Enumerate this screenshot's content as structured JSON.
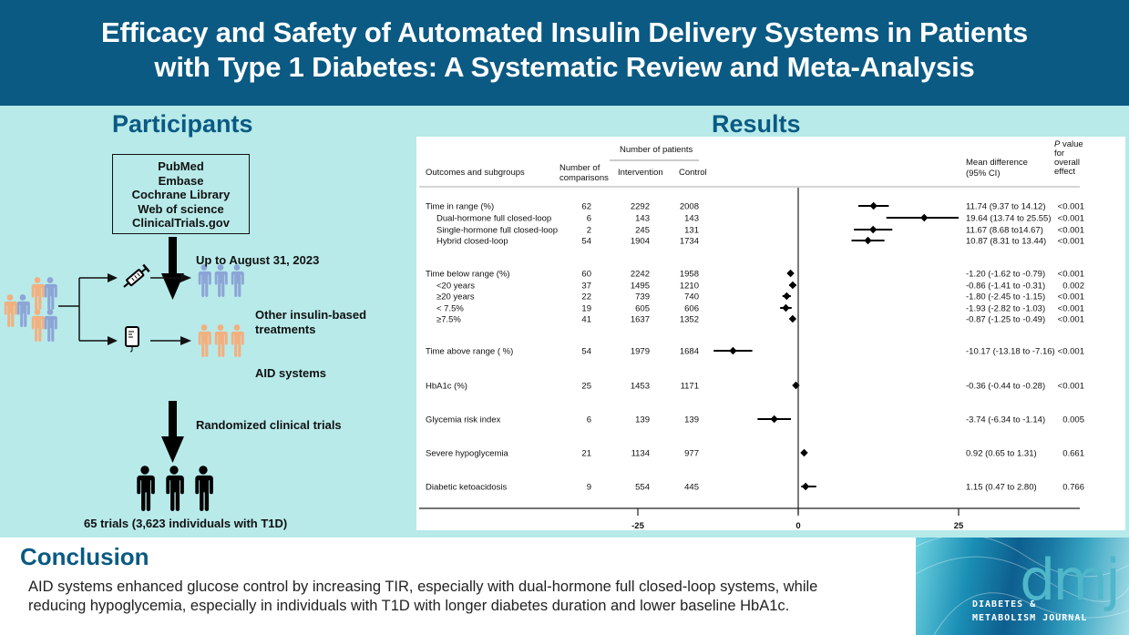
{
  "header": {
    "title_line1": "Efficacy and Safety of Automated Insulin Delivery Systems in Patients",
    "title_line2": "with Type 1 Diabetes: A Systematic Review and Meta-Analysis"
  },
  "participants": {
    "title": "Participants",
    "databases": [
      "PubMed",
      "Embase",
      "Cochrane Library",
      "Web of science",
      "ClinicalTrials.gov"
    ],
    "search_date": "Up to August 31, 2023",
    "arm_other": "Other insulin-based treatments",
    "arm_other_line1": "Other insulin-based",
    "arm_other_line2": "treatments",
    "arm_aid": "AID systems",
    "design": "Randomized clinical trials",
    "summary": "65 trials (3,623 individuals with T1D)",
    "colors": {
      "blue_person": "#8da5d6",
      "orange_person": "#f2b07f",
      "dark": "#111111"
    }
  },
  "results": {
    "title": "Results"
  },
  "chart_data": {
    "type": "forest",
    "title": "Results",
    "columns": {
      "outcome": "Outcomes and subgroups",
      "comparisons_line1": "Number of",
      "comparisons_line2": "comparisons",
      "patients_group": "Number of patients",
      "intervention": "Intervention",
      "control": "Control",
      "md_line1": "Mean difference",
      "md_line2": "(95% CI)",
      "p_line1": "P value",
      "p_line2": "for",
      "p_line3": "overall",
      "p_line4": "effect"
    },
    "xaxis": {
      "ticks": [
        -25,
        0,
        25
      ],
      "tick_labels": [
        "-25",
        "0",
        "25"
      ],
      "range": [
        -25,
        25
      ],
      "reference_line": 0
    },
    "rows": [
      {
        "label": "Time in range (%)",
        "indent": false,
        "comparisons": "62",
        "intervention": "2292",
        "control": "2008",
        "md": 11.74,
        "lo": 9.37,
        "hi": 14.12,
        "md_text": "11.74 (9.37 to 14.12)",
        "p": "<0.001"
      },
      {
        "label": "Dual-hormone full closed-loop",
        "indent": true,
        "comparisons": "6",
        "intervention": "143",
        "control": "143",
        "md": 19.64,
        "lo": 13.74,
        "hi": 25.55,
        "md_text": "19.64 (13.74 to 25.55)",
        "p": "<0.001"
      },
      {
        "label": "Single-hormone full closed-loop",
        "indent": true,
        "comparisons": "2",
        "intervention": "245",
        "control": "131",
        "md": 11.67,
        "lo": 8.68,
        "hi": 14.67,
        "md_text": "11.67 (8.68 to14.67)",
        "p": "<0.001"
      },
      {
        "label": "Hybrid closed-loop",
        "indent": true,
        "comparisons": "54",
        "intervention": "1904",
        "control": "1734",
        "md": 10.87,
        "lo": 8.31,
        "hi": 13.44,
        "md_text": "10.87 (8.31 to 13.44)",
        "p": "<0.001"
      },
      {
        "label": "Time below range (%)",
        "indent": false,
        "comparisons": "60",
        "intervention": "2242",
        "control": "1958",
        "md": -1.2,
        "lo": -1.62,
        "hi": -0.79,
        "md_text": "-1.20 (-1.62 to -0.79)",
        "p": "<0.001"
      },
      {
        "label": "<20 years",
        "indent": true,
        "comparisons": "37",
        "intervention": "1495",
        "control": "1210",
        "md": -0.86,
        "lo": -1.41,
        "hi": -0.31,
        "md_text": "-0.86 (-1.41 to -0.31)",
        "p": "0.002"
      },
      {
        "label": "≥20 years",
        "indent": true,
        "comparisons": "22",
        "intervention": "739",
        "control": "740",
        "md": -1.8,
        "lo": -2.45,
        "hi": -1.15,
        "md_text": "-1.80 (-2.45 to -1.15)",
        "p": "<0.001"
      },
      {
        "label": "< 7.5%",
        "indent": true,
        "comparisons": "19",
        "intervention": "605",
        "control": "606",
        "md": -1.93,
        "lo": -2.82,
        "hi": -1.03,
        "md_text": "-1.93 (-2.82 to -1.03)",
        "p": "<0.001"
      },
      {
        "label": "≥7.5%",
        "indent": true,
        "comparisons": "41",
        "intervention": "1637",
        "control": "1352",
        "md": -0.87,
        "lo": -1.25,
        "hi": -0.49,
        "md_text": "-0.87 (-1.25 to -0.49)",
        "p": "<0.001"
      },
      {
        "label": "Time above range ( %)",
        "indent": false,
        "comparisons": "54",
        "intervention": "1979",
        "control": "1684",
        "md": -10.17,
        "lo": -13.18,
        "hi": -7.16,
        "md_text": "-10.17 (-13.18 to -7.16)",
        "p": "<0.001"
      },
      {
        "label": "HbA1c (%)",
        "indent": false,
        "comparisons": "25",
        "intervention": "1453",
        "control": "1171",
        "md": -0.36,
        "lo": -0.44,
        "hi": -0.28,
        "md_text": "-0.36 (-0.44 to -0.28)",
        "p": "<0.001"
      },
      {
        "label": "Glycemia risk index",
        "indent": false,
        "comparisons": "6",
        "intervention": "139",
        "control": "139",
        "md": -3.74,
        "lo": -6.34,
        "hi": -1.14,
        "md_text": "-3.74 (-6.34 to -1.14)",
        "p": "0.005"
      },
      {
        "label": "Severe hypoglycemia",
        "indent": false,
        "comparisons": "21",
        "intervention": "1134",
        "control": "977",
        "md": 0.92,
        "lo": 0.65,
        "hi": 1.31,
        "md_text": "0.92 (0.65 to 1.31)",
        "p": "0.661"
      },
      {
        "label": "Diabetic ketoacidosis",
        "indent": false,
        "comparisons": "9",
        "intervention": "554",
        "control": "445",
        "md": 1.15,
        "lo": 0.47,
        "hi": 2.8,
        "md_text": "1.15 (0.47 to 2.80)",
        "p": "0.766"
      }
    ]
  },
  "conclusion": {
    "title": "Conclusion",
    "line1": "AID systems enhanced glucose control by increasing TIR, especially with dual-hormone full closed-loop systems, while",
    "line2": "reducing hypoglycemia, especially in individuals with T1D with longer diabetes duration and lower baseline HbA1c."
  },
  "journal": {
    "abbrev": "dmj",
    "name_line1": "DIABETES &",
    "name_line2": "METABOLISM JOURNAL"
  },
  "colors": {
    "header_bg": "#0a5a83",
    "panel_bg": "#b8eaea",
    "accent_title": "#0a5a83"
  }
}
